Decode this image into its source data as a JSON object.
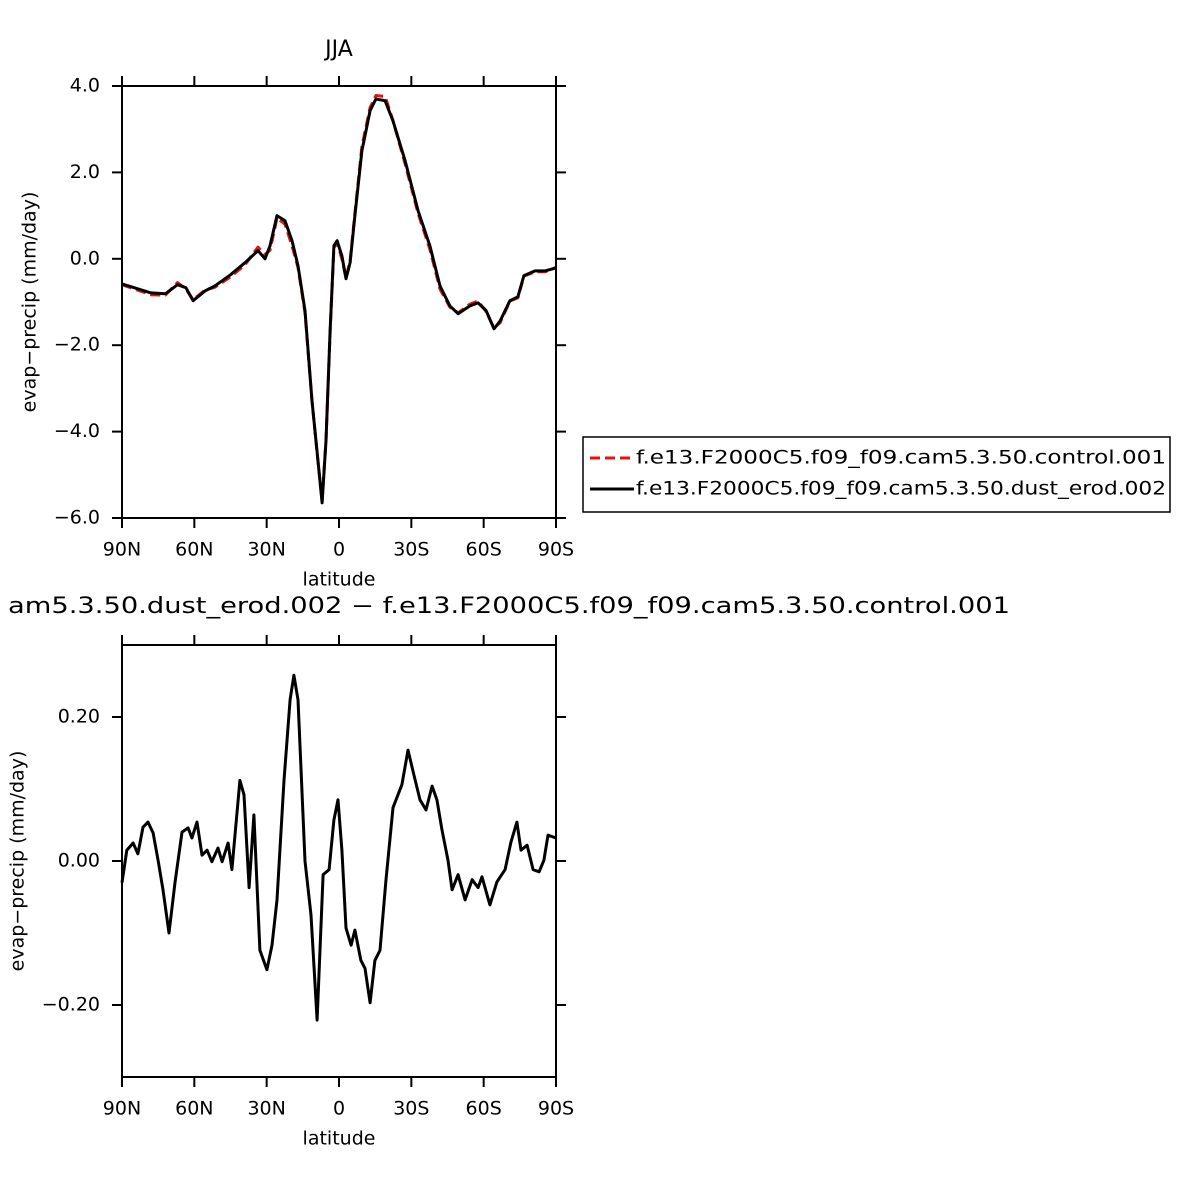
{
  "chart_data": [
    {
      "type": "line",
      "title": "JJA",
      "xlabel": "latitude",
      "ylabel": "evap−precip (mm/day)",
      "x": [
        90,
        78,
        72,
        67,
        63.5,
        60.5,
        55.5,
        51.5,
        45,
        39,
        33.6,
        30.7,
        28.6,
        25.7,
        22.4,
        19.5,
        17,
        14.1,
        11.2,
        8.7,
        7,
        5.4,
        3.7,
        2.1,
        0.8,
        -1.2,
        -2.9,
        -4.6,
        -6.6,
        -9.5,
        -12.9,
        -15.3,
        -19.1,
        -22.4,
        -27.4,
        -32.8,
        -37.7,
        -41.9,
        -46,
        -49.4,
        -54.3,
        -57.7,
        -61,
        -64.3,
        -66.8,
        -70.9,
        -74.2,
        -76.7,
        -81.3,
        -85.4,
        -90
      ],
      "series": [
        {
          "name": "f.e13.F2000C5.f09_f09.cam5.3.50.control.001",
          "color": "#e8120c",
          "linestyle": "dashed",
          "values": [
            -0.6,
            -0.83,
            -0.84,
            -0.55,
            -0.7,
            -0.95,
            -0.72,
            -0.66,
            -0.42,
            -0.14,
            0.27,
            0.1,
            0.2,
            0.95,
            0.8,
            0.3,
            -0.2,
            -1.25,
            -3.3,
            -4.7,
            -5.6,
            -4.2,
            -1.7,
            0.25,
            0.38,
            0.0,
            -0.44,
            -0.05,
            1.05,
            2.6,
            3.5,
            3.78,
            3.76,
            3.2,
            2.2,
            1.05,
            0.22,
            -0.7,
            -1.12,
            -1.25,
            -1.05,
            -0.98,
            -1.22,
            -1.6,
            -1.48,
            -0.98,
            -0.9,
            -0.4,
            -0.3,
            -0.3,
            -0.2
          ]
        },
        {
          "name": "f.e13.F2000C5.f09_f09.cam5.3.50.dust_erod.002",
          "color": "#000000",
          "linestyle": "solid",
          "values": [
            -0.58,
            -0.79,
            -0.81,
            -0.6,
            -0.67,
            -0.97,
            -0.74,
            -0.63,
            -0.37,
            -0.09,
            0.19,
            0.0,
            0.3,
            1.0,
            0.88,
            0.42,
            -0.16,
            -1.2,
            -3.29,
            -4.68,
            -5.65,
            -4.21,
            -1.67,
            0.3,
            0.42,
            0.07,
            -0.46,
            -0.09,
            1.0,
            2.5,
            3.43,
            3.7,
            3.66,
            3.19,
            2.27,
            1.11,
            0.3,
            -0.63,
            -1.09,
            -1.27,
            -1.09,
            -1.02,
            -1.2,
            -1.62,
            -1.44,
            -0.97,
            -0.88,
            -0.39,
            -0.28,
            -0.28,
            -0.21
          ]
        }
      ],
      "xlim": [
        90,
        -90
      ],
      "xticks": [
        {
          "value": 90,
          "label": "90N"
        },
        {
          "value": 60,
          "label": "60N"
        },
        {
          "value": 30,
          "label": "30N"
        },
        0,
        {
          "value": -30,
          "label": "30S"
        },
        {
          "value": -60,
          "label": "60S"
        },
        {
          "value": -90,
          "label": "90S"
        }
      ],
      "ylim": [
        -6,
        4
      ],
      "yticks": [
        {
          "value": 4,
          "label": "4.0"
        },
        {
          "value": 2,
          "label": "2.0"
        },
        {
          "value": 0,
          "label": "0.0"
        },
        {
          "value": -2,
          "label": "−2.0"
        },
        {
          "value": -4,
          "label": "−4.0"
        },
        {
          "value": -6,
          "label": "−6.0"
        }
      ],
      "legend": "right"
    },
    {
      "type": "line",
      "title": "am5.3.50.dust_erod.002 − f.e13.F2000C5.f09_f09.cam5.3.50.control.001",
      "xlabel": "latitude",
      "ylabel": "evap−precip (mm/day)",
      "x": [
        90,
        88,
        85.4,
        83.4,
        81.3,
        79.2,
        77.1,
        75,
        73,
        70.5,
        68,
        65.1,
        62.6,
        61,
        58.9,
        56.8,
        54.7,
        52.7,
        50.2,
        48.5,
        46,
        44.4,
        41.1,
        39.4,
        37.3,
        35.3,
        32.8,
        29.9,
        27.8,
        25.7,
        22.8,
        20.3,
        18.7,
        17,
        14.1,
        11.6,
        9.1,
        6.6,
        4.1,
        2.1,
        0.4,
        -1.2,
        -2.9,
        -5,
        -6.6,
        -9.1,
        -10.8,
        -12.9,
        -14.9,
        -17,
        -19.5,
        -22.4,
        -26.1,
        -28.6,
        -31.1,
        -33.6,
        -36.1,
        -38.6,
        -40.6,
        -42.7,
        -45.2,
        -46.9,
        -49.4,
        -52.3,
        -55.2,
        -57.7,
        -59.3,
        -62.6,
        -65.5,
        -68.9,
        -71.3,
        -73.8,
        -75.5,
        -78,
        -80.5,
        -83,
        -85,
        -86.7,
        -90
      ],
      "values": [
        -0.03,
        0.015,
        0.025,
        0.01,
        0.047,
        0.054,
        0.039,
        0.0,
        -0.04,
        -0.1,
        -0.03,
        0.04,
        0.046,
        0.032,
        0.054,
        0.008,
        0.015,
        -0.001,
        0.018,
        -0.001,
        0.025,
        -0.012,
        0.112,
        0.092,
        -0.037,
        0.064,
        -0.124,
        -0.151,
        -0.117,
        -0.054,
        0.112,
        0.224,
        0.258,
        0.224,
        0.0,
        -0.075,
        -0.221,
        -0.019,
        -0.012,
        0.057,
        0.085,
        0.015,
        -0.093,
        -0.117,
        -0.096,
        -0.138,
        -0.149,
        -0.197,
        -0.138,
        -0.124,
        -0.026,
        0.074,
        0.106,
        0.154,
        0.119,
        0.085,
        0.071,
        0.104,
        0.085,
        0.043,
        0.001,
        -0.04,
        -0.019,
        -0.054,
        -0.026,
        -0.037,
        -0.022,
        -0.061,
        -0.029,
        -0.012,
        0.026,
        0.054,
        0.015,
        0.022,
        -0.012,
        -0.015,
        0.001,
        0.036,
        0.032
      ],
      "color": "#000000",
      "xlim": [
        90,
        -90
      ],
      "xticks": [
        {
          "value": 90,
          "label": "90N"
        },
        {
          "value": 60,
          "label": "60N"
        },
        {
          "value": 30,
          "label": "30N"
        },
        0,
        {
          "value": -30,
          "label": "30S"
        },
        {
          "value": -60,
          "label": "60S"
        },
        {
          "value": -90,
          "label": "90S"
        }
      ],
      "ylim": [
        -0.3,
        0.3
      ],
      "yticks": [
        {
          "value": 0.2,
          "label": "0.20"
        },
        {
          "value": 0,
          "label": "0.00"
        },
        {
          "value": -0.2,
          "label": "−0.20"
        }
      ]
    }
  ]
}
